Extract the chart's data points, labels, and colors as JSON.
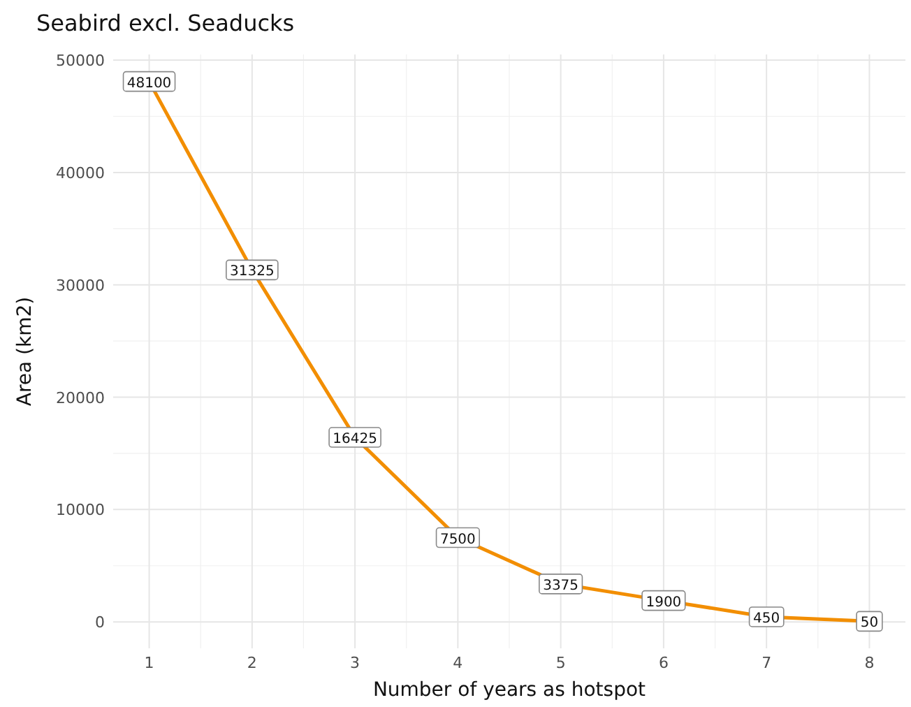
{
  "chart_data": {
    "type": "line",
    "title": "Seabird excl. Seaducks",
    "xlabel": "Number of years as hotspot",
    "ylabel": "Area (km2)",
    "x": [
      1,
      2,
      3,
      4,
      5,
      6,
      7,
      8
    ],
    "series": [
      {
        "color": "#f28e00",
        "values": [
          48100,
          31325,
          16425,
          7500,
          3375,
          1900,
          450,
          50
        ]
      }
    ],
    "xlim": [
      0.65,
      8.35
    ],
    "xticks": [
      1,
      2,
      3,
      4,
      5,
      6,
      7,
      8
    ],
    "ylim": [
      -2352,
      50502
    ],
    "yticks": [
      0,
      10000,
      20000,
      30000,
      40000,
      50000
    ],
    "grid": true,
    "data_labels": true,
    "marker": "square",
    "line_style": "solid"
  }
}
